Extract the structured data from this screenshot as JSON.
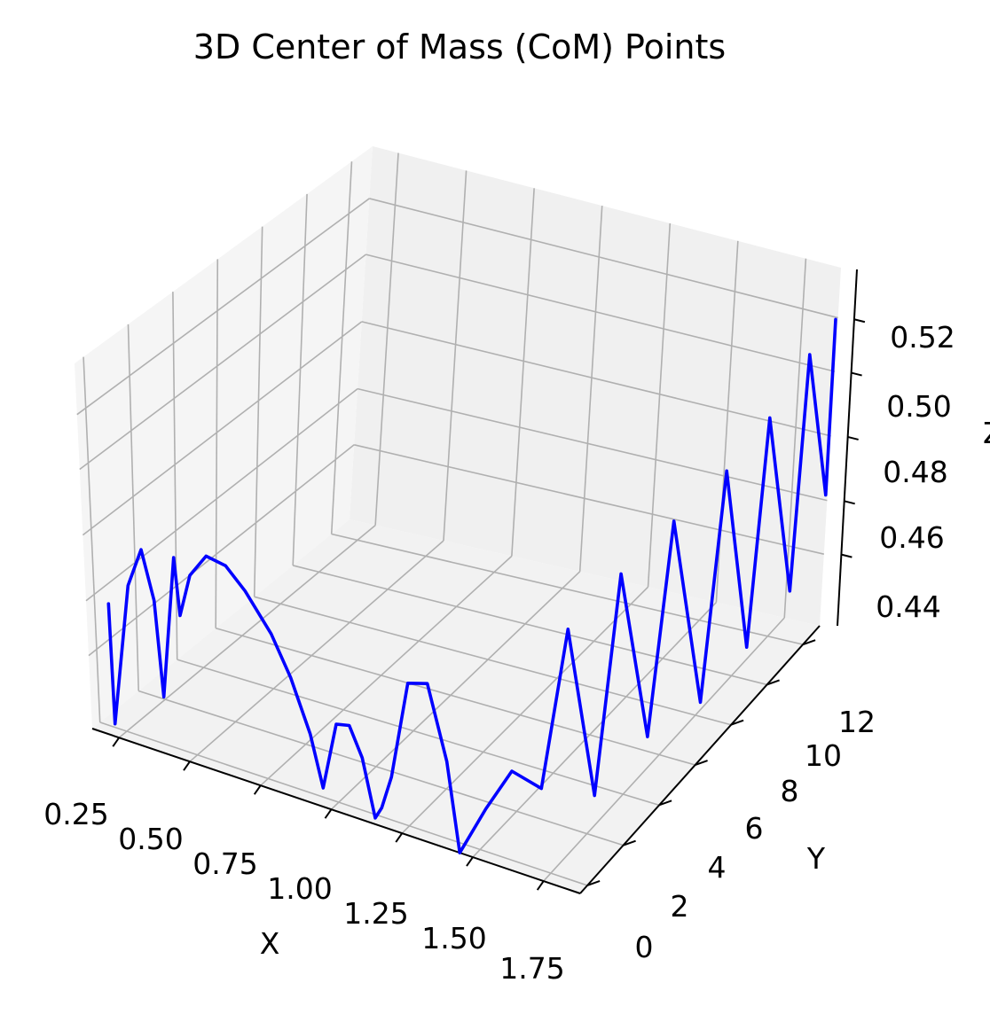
{
  "chart_data": {
    "type": "line",
    "projection": "3d",
    "title": "3D Center of Mass (CoM) Points",
    "xlabel": "X",
    "ylabel": "Y",
    "zlabel": "Z",
    "xlim": [
      0.25,
      1.75
    ],
    "ylim": [
      0,
      12
    ],
    "zlim": [
      0.43,
      0.53
    ],
    "x_ticks": [
      "0.25",
      "0.50",
      "0.75",
      "1.00",
      "1.25",
      "1.50",
      "1.75"
    ],
    "y_ticks": [
      "0",
      "2",
      "4",
      "6",
      "8",
      "10",
      "12"
    ],
    "z_ticks": [
      "0.44",
      "0.46",
      "0.48",
      "0.50",
      "0.52"
    ],
    "grid": true,
    "legend": "none",
    "series": [
      {
        "color": "#0000ff",
        "description_points": "approximate trajectory (x, y, z)",
        "points": [
          [
            0.3,
            0.0,
            0.472
          ],
          [
            0.32,
            0.0,
            0.434
          ],
          [
            0.36,
            0.0,
            0.48
          ],
          [
            0.4,
            0.0,
            0.493
          ],
          [
            0.44,
            0.0,
            0.478
          ],
          [
            0.47,
            0.0,
            0.448
          ],
          [
            0.5,
            0.0,
            0.494
          ],
          [
            0.52,
            0.0,
            0.476
          ],
          [
            0.55,
            0.0,
            0.49
          ],
          [
            0.6,
            0.0,
            0.498
          ],
          [
            0.66,
            0.0,
            0.497
          ],
          [
            0.72,
            0.0,
            0.491
          ],
          [
            0.8,
            0.0,
            0.48
          ],
          [
            0.86,
            0.0,
            0.468
          ],
          [
            0.92,
            0.0,
            0.452
          ],
          [
            0.96,
            0.0,
            0.436
          ],
          [
            1.0,
            0.0,
            0.458
          ],
          [
            1.04,
            0.0,
            0.459
          ],
          [
            1.08,
            0.0,
            0.45
          ],
          [
            1.12,
            0.0,
            0.432
          ],
          [
            1.14,
            0.0,
            0.436
          ],
          [
            1.17,
            0.0,
            0.447
          ],
          [
            1.22,
            0.0,
            0.479
          ],
          [
            1.28,
            0.0,
            0.481
          ],
          [
            1.34,
            0.0,
            0.458
          ],
          [
            1.38,
            0.0,
            0.43
          ],
          [
            1.46,
            0.0,
            0.447
          ],
          [
            1.54,
            0.0,
            0.462
          ],
          [
            1.6,
            0.5,
            0.455
          ],
          [
            1.62,
            1.5,
            0.5
          ],
          [
            1.64,
            2.5,
            0.44
          ],
          [
            1.66,
            3.5,
            0.505
          ],
          [
            1.68,
            4.5,
            0.446
          ],
          [
            1.7,
            5.5,
            0.509
          ],
          [
            1.72,
            6.5,
            0.444
          ],
          [
            1.74,
            7.5,
            0.512
          ],
          [
            1.74,
            8.5,
            0.448
          ],
          [
            1.75,
            9.5,
            0.515
          ],
          [
            1.75,
            10.5,
            0.452
          ],
          [
            1.75,
            11.5,
            0.521
          ],
          [
            1.75,
            12.3,
            0.47
          ],
          [
            1.75,
            12.8,
            0.523
          ]
        ]
      }
    ]
  }
}
